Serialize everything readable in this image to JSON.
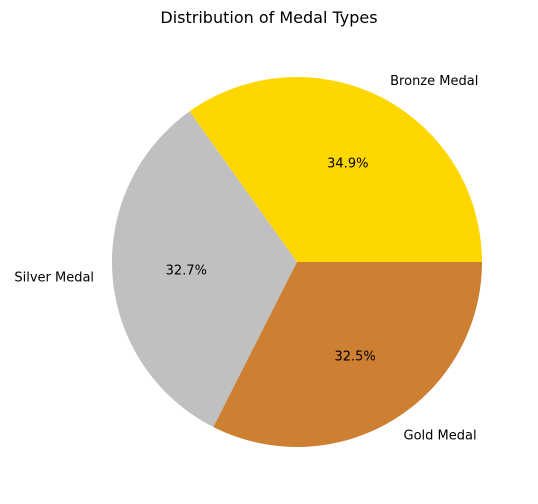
{
  "chart_data": {
    "type": "pie",
    "title": "Distribution of Medal Types",
    "slices": [
      {
        "label": "Bronze Medal",
        "percent": 34.9,
        "percent_label": "34.9%",
        "color": "#FFD700"
      },
      {
        "label": "Silver Medal",
        "percent": 32.7,
        "percent_label": "32.7%",
        "color": "#C0C0C0"
      },
      {
        "label": "Gold Medal",
        "percent": 32.5,
        "percent_label": "32.5%",
        "color": "#CD7F32"
      }
    ],
    "start_angle_deg": 0,
    "direction": "counterclockwise"
  }
}
